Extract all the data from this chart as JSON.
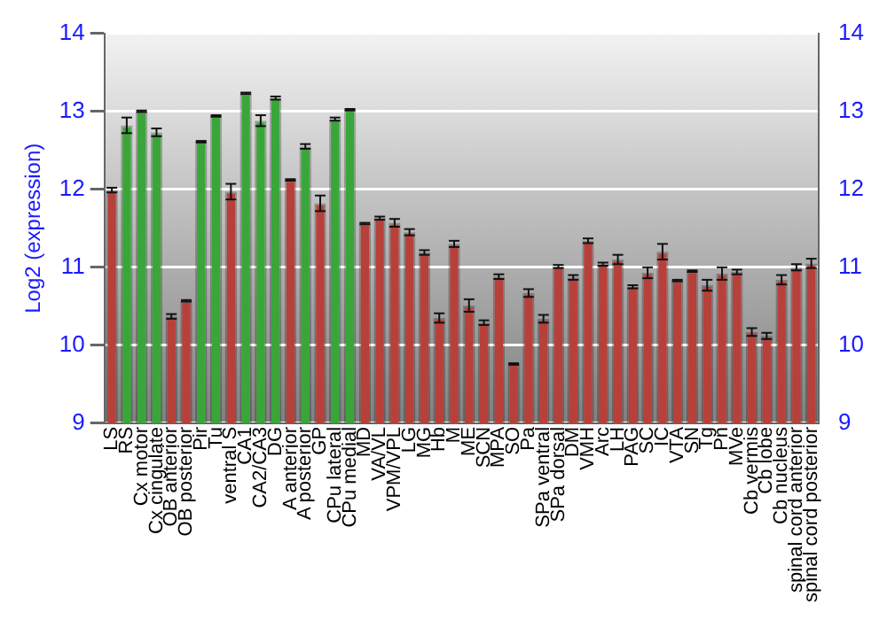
{
  "chart_data": {
    "type": "bar",
    "ylabel": "Log2 (expression)",
    "categories": [
      "LS",
      "RS",
      "Cx motor",
      "Cx cingulate",
      "OB anterior",
      "OB posterior",
      "Pir",
      "Tu",
      "ventral S",
      "CA1",
      "CA2/CA3",
      "DG",
      "A anterior",
      "A posterior",
      "GP",
      "CPu lateral",
      "CPu medial",
      "MD",
      "VA/VL",
      "VPM/VPL",
      "LG",
      "MG",
      "Hb",
      "M",
      "ME",
      "SCN",
      "MPA",
      "SO",
      "Pa",
      "SPa ventral",
      "SPa dorsal",
      "DM",
      "VMH",
      "Arc",
      "LH",
      "PAG",
      "SC",
      "IC",
      "VTA",
      "SN",
      "Tg",
      "Pn",
      "MVe",
      "Cb vermis",
      "Cb lobe",
      "Cb nucleus",
      "spinal cord anterior",
      "spinal cord posterior"
    ],
    "values": [
      11.99,
      12.82,
      13.0,
      12.73,
      10.37,
      10.57,
      12.61,
      12.94,
      11.97,
      13.23,
      12.88,
      13.17,
      12.12,
      12.55,
      11.82,
      12.9,
      13.02,
      11.56,
      11.63,
      11.57,
      11.45,
      11.19,
      10.35,
      11.3,
      10.51,
      10.29,
      10.88,
      9.76,
      10.67,
      10.34,
      11.01,
      10.87,
      11.34,
      11.04,
      11.1,
      10.75,
      10.93,
      11.2,
      10.83,
      10.95,
      10.77,
      10.92,
      10.94,
      10.17,
      10.12,
      10.84,
      11.0,
      11.05
    ],
    "errors": [
      0.03,
      0.1,
      0.01,
      0.05,
      0.03,
      0.01,
      0.01,
      0.01,
      0.1,
      0.01,
      0.07,
      0.02,
      0.01,
      0.03,
      0.1,
      0.02,
      0.01,
      0.01,
      0.02,
      0.05,
      0.04,
      0.03,
      0.06,
      0.04,
      0.08,
      0.03,
      0.03,
      0.01,
      0.05,
      0.05,
      0.02,
      0.03,
      0.03,
      0.02,
      0.06,
      0.02,
      0.07,
      0.1,
      0.01,
      0.01,
      0.07,
      0.08,
      0.03,
      0.05,
      0.04,
      0.06,
      0.04,
      0.06
    ],
    "colors": [
      "#b8403a",
      "#3aa63a",
      "#3aa63a",
      "#3aa63a",
      "#b8403a",
      "#b8403a",
      "#3aa63a",
      "#3aa63a",
      "#b8403a",
      "#3aa63a",
      "#3aa63a",
      "#3aa63a",
      "#b8403a",
      "#3aa63a",
      "#b8403a",
      "#3aa63a",
      "#3aa63a",
      "#b8403a",
      "#b8403a",
      "#b8403a",
      "#b8403a",
      "#b8403a",
      "#b8403a",
      "#b8403a",
      "#b8403a",
      "#b8403a",
      "#b8403a",
      "#b8403a",
      "#b8403a",
      "#b8403a",
      "#b8403a",
      "#b8403a",
      "#b8403a",
      "#b8403a",
      "#b8403a",
      "#b8403a",
      "#b8403a",
      "#b8403a",
      "#b8403a",
      "#b8403a",
      "#b8403a",
      "#b8403a",
      "#b8403a",
      "#b8403a",
      "#b8403a",
      "#b8403a",
      "#b8403a",
      "#b8403a"
    ],
    "ylim": [
      9,
      14
    ],
    "yticks": [
      9,
      10,
      11,
      12,
      13,
      14
    ],
    "y2lim": [
      9,
      14
    ],
    "y2ticks": [
      9,
      10,
      11,
      12,
      13,
      14
    ],
    "grid": "y",
    "legend": false
  }
}
